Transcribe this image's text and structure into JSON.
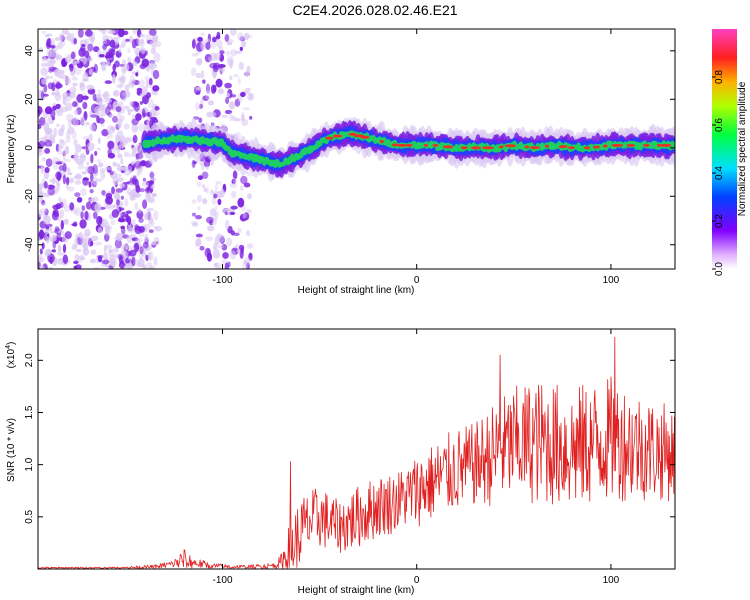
{
  "figure_title": "C2E4.2026.028.02.46.E21",
  "colors": {
    "snr_line": "#e02020",
    "spectrum_low": "#d9c6f2",
    "spectrum_mid": "#7a1fe0",
    "spectrum_track": "#20d060",
    "spectrum_peak": "#ff2020"
  },
  "chart_data": [
    {
      "type": "heatmap",
      "title": "C2E4.2026.028.02.46.E21",
      "xlabel": "Height of straight line (km)",
      "ylabel": "Frequency (Hz)",
      "xlim": [
        -195,
        133
      ],
      "ylim": [
        -50,
        49
      ],
      "xticks": [
        -100,
        0,
        100
      ],
      "yticks": [
        -40,
        -20,
        0,
        20,
        40
      ],
      "xtick_labels": [
        "-100",
        "0",
        "100"
      ],
      "ytick_labels": [
        "-40",
        "-20",
        "0",
        "20",
        "40"
      ],
      "colorbar": {
        "label": "Normalized spectral amplitude",
        "range": [
          0,
          1
        ],
        "ticks": [
          0.0,
          0.2,
          0.4,
          0.6,
          0.8
        ],
        "tick_labels": [
          "0.0",
          "0.2",
          "0.4",
          "0.6",
          "0.8"
        ]
      },
      "ridge": {
        "x": [
          -140,
          -130,
          -120,
          -110,
          -100,
          -95,
          -90,
          -85,
          -80,
          -75,
          -70,
          -65,
          -60,
          -55,
          -50,
          -45,
          -40,
          -35,
          -30,
          -25,
          -20,
          -15,
          -10,
          0,
          10,
          20,
          30,
          40,
          50,
          60,
          70,
          80,
          90,
          100,
          110,
          120,
          133
        ],
        "y": [
          2,
          3,
          4,
          3,
          2,
          -2,
          -3,
          -4,
          -5,
          -6,
          -7,
          -5,
          -3,
          -1,
          2,
          4,
          5,
          6,
          5,
          4,
          3,
          2,
          1,
          1,
          1,
          0,
          0,
          0,
          1,
          0,
          1,
          0,
          0,
          1,
          1,
          1,
          1
        ]
      },
      "noise_regions": [
        {
          "x_range": [
            -195,
            -133
          ],
          "density": "high"
        },
        {
          "x_range": [
            -115,
            -85
          ],
          "density": "medium"
        }
      ]
    },
    {
      "type": "line",
      "xlabel": "Height of straight line (km)",
      "ylabel": "SNR (10 * v/v)",
      "scale_note": "(x10",
      "scale_exp": "4",
      "close_paren": ")",
      "xlim": [
        -195,
        133
      ],
      "ylim": [
        0.0,
        2.3
      ],
      "xticks": [
        -100,
        0,
        100
      ],
      "yticks": [
        0.5,
        1.0,
        1.5,
        2.0
      ],
      "xtick_labels": [
        "-100",
        "0",
        "100"
      ],
      "ytick_labels": [
        "0.5",
        "1.0",
        "1.5",
        "2.0"
      ],
      "series": [
        {
          "name": "SNR",
          "x": [
            -195,
            -175,
            -155,
            -135,
            -125,
            -120,
            -115,
            -105,
            -95,
            -85,
            -75,
            -70,
            -65,
            -60,
            -55,
            -50,
            -45,
            -40,
            -35,
            -30,
            -25,
            -20,
            -15,
            -10,
            -5,
            0,
            10,
            20,
            30,
            40,
            50,
            60,
            70,
            80,
            90,
            100,
            110,
            120,
            133
          ],
          "mean": [
            0.01,
            0.01,
            0.01,
            0.02,
            0.05,
            0.09,
            0.06,
            0.03,
            0.02,
            0.02,
            0.03,
            0.06,
            0.18,
            0.35,
            0.45,
            0.5,
            0.45,
            0.4,
            0.45,
            0.5,
            0.55,
            0.6,
            0.62,
            0.65,
            0.7,
            0.75,
            0.85,
            0.95,
            1.0,
            1.1,
            1.2,
            1.22,
            1.2,
            1.15,
            1.2,
            1.25,
            1.2,
            1.15,
            1.1
          ],
          "amp": [
            0.01,
            0.01,
            0.01,
            0.02,
            0.04,
            0.12,
            0.05,
            0.03,
            0.02,
            0.02,
            0.03,
            0.08,
            0.3,
            0.35,
            0.3,
            0.3,
            0.28,
            0.25,
            0.3,
            0.3,
            0.3,
            0.3,
            0.3,
            0.3,
            0.3,
            0.35,
            0.38,
            0.4,
            0.4,
            0.5,
            0.55,
            0.6,
            0.6,
            0.6,
            0.6,
            0.6,
            0.55,
            0.5,
            0.45
          ],
          "peaks": [
            {
              "x": -65,
              "y": 1.03
            },
            {
              "x": 43,
              "y": 2.05
            },
            {
              "x": 102,
              "y": 2.22
            }
          ]
        }
      ]
    }
  ]
}
